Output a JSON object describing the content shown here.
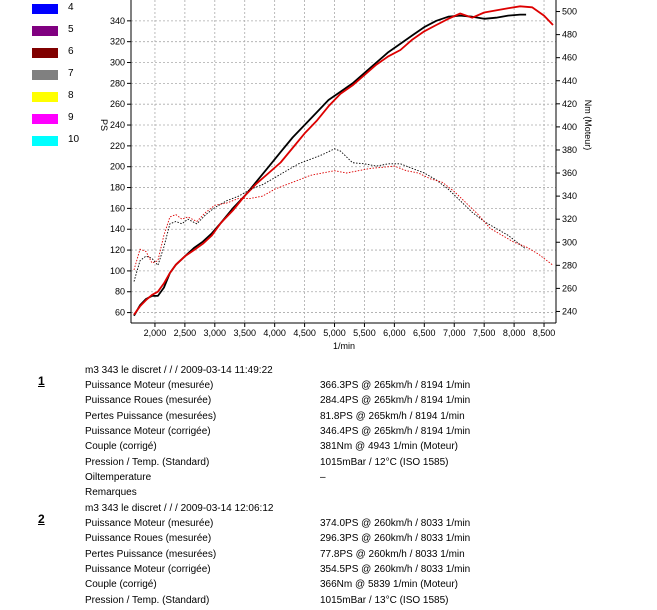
{
  "legend": [
    {
      "num": "4",
      "color": "#0000ff"
    },
    {
      "num": "5",
      "color": "#800080"
    },
    {
      "num": "6",
      "color": "#800000"
    },
    {
      "num": "7",
      "color": "#808080"
    },
    {
      "num": "8",
      "color": "#ffff00"
    },
    {
      "num": "9",
      "color": "#ff00ff"
    },
    {
      "num": "10",
      "color": "#00ffff"
    }
  ],
  "chart_data": {
    "type": "line",
    "xlabel": "1/min",
    "ylabel_left": "PS",
    "ylabel_right": "Nm (Moteur)",
    "xlim": [
      1600,
      8700
    ],
    "ylim_left": [
      50,
      360
    ],
    "ylim_right": [
      230,
      510
    ],
    "x_ticks": [
      "2,000",
      "2,500",
      "3,000",
      "3,500",
      "4,000",
      "4,500",
      "5,000",
      "5,500",
      "6,000",
      "6,500",
      "7,000",
      "7,500",
      "8,000",
      "8,500"
    ],
    "x_tick_values": [
      2000,
      2500,
      3000,
      3500,
      4000,
      4500,
      5000,
      5500,
      6000,
      6500,
      7000,
      7500,
      8000,
      8500
    ],
    "y_left_ticks": [
      60,
      80,
      100,
      120,
      140,
      160,
      180,
      200,
      220,
      240,
      260,
      280,
      300,
      320,
      340
    ],
    "y_right_ticks": [
      240,
      260,
      280,
      300,
      320,
      340,
      360,
      380,
      400,
      420,
      440,
      460,
      480,
      500
    ],
    "grid": true,
    "series": [
      {
        "name": "1",
        "color": "#000000",
        "style": "solid",
        "axis": "left",
        "points": [
          [
            1650,
            57
          ],
          [
            1750,
            67
          ],
          [
            1850,
            73
          ],
          [
            1950,
            76
          ],
          [
            2050,
            76
          ],
          [
            2150,
            84
          ],
          [
            2250,
            98
          ],
          [
            2350,
            106
          ],
          [
            2500,
            114
          ],
          [
            2650,
            122
          ],
          [
            2800,
            128
          ],
          [
            2950,
            136
          ],
          [
            3100,
            146
          ],
          [
            3300,
            160
          ],
          [
            3500,
            172
          ],
          [
            3700,
            186
          ],
          [
            3900,
            200
          ],
          [
            4100,
            214
          ],
          [
            4300,
            228
          ],
          [
            4500,
            240
          ],
          [
            4700,
            252
          ],
          [
            4900,
            264
          ],
          [
            5100,
            272
          ],
          [
            5300,
            280
          ],
          [
            5500,
            290
          ],
          [
            5700,
            300
          ],
          [
            5900,
            310
          ],
          [
            6100,
            318
          ],
          [
            6300,
            326
          ],
          [
            6500,
            334
          ],
          [
            6700,
            340
          ],
          [
            6900,
            344
          ],
          [
            7100,
            345
          ],
          [
            7300,
            344
          ],
          [
            7500,
            342
          ],
          [
            7700,
            343
          ],
          [
            7900,
            345
          ],
          [
            8100,
            346
          ],
          [
            8200,
            346
          ]
        ]
      },
      {
        "name": "2",
        "color": "#dd0000",
        "style": "solid",
        "axis": "left",
        "points": [
          [
            1650,
            58
          ],
          [
            1750,
            66
          ],
          [
            1850,
            72
          ],
          [
            1950,
            77
          ],
          [
            2050,
            80
          ],
          [
            2150,
            88
          ],
          [
            2250,
            98
          ],
          [
            2350,
            106
          ],
          [
            2500,
            114
          ],
          [
            2650,
            120
          ],
          [
            2800,
            126
          ],
          [
            2950,
            134
          ],
          [
            3100,
            146
          ],
          [
            3300,
            158
          ],
          [
            3500,
            172
          ],
          [
            3700,
            184
          ],
          [
            3900,
            194
          ],
          [
            4100,
            204
          ],
          [
            4300,
            218
          ],
          [
            4500,
            232
          ],
          [
            4700,
            244
          ],
          [
            4900,
            258
          ],
          [
            5100,
            270
          ],
          [
            5300,
            278
          ],
          [
            5500,
            288
          ],
          [
            5700,
            298
          ],
          [
            5900,
            306
          ],
          [
            6100,
            312
          ],
          [
            6300,
            322
          ],
          [
            6500,
            330
          ],
          [
            6700,
            336
          ],
          [
            6900,
            342
          ],
          [
            7100,
            347
          ],
          [
            7300,
            343
          ],
          [
            7500,
            348
          ],
          [
            7700,
            350
          ],
          [
            7900,
            352
          ],
          [
            8100,
            354
          ],
          [
            8300,
            353
          ],
          [
            8500,
            345
          ],
          [
            8650,
            336
          ]
        ]
      },
      {
        "name": "1",
        "color": "#000000",
        "style": "dotted",
        "axis": "right",
        "points": [
          [
            1650,
            266
          ],
          [
            1750,
            284
          ],
          [
            1850,
            288
          ],
          [
            1950,
            286
          ],
          [
            2050,
            280
          ],
          [
            2150,
            296
          ],
          [
            2250,
            316
          ],
          [
            2350,
            318
          ],
          [
            2450,
            316
          ],
          [
            2550,
            320
          ],
          [
            2700,
            316
          ],
          [
            2850,
            324
          ],
          [
            3000,
            330
          ],
          [
            3200,
            336
          ],
          [
            3400,
            340
          ],
          [
            3600,
            346
          ],
          [
            3800,
            350
          ],
          [
            4000,
            356
          ],
          [
            4200,
            362
          ],
          [
            4400,
            368
          ],
          [
            4600,
            372
          ],
          [
            4800,
            376
          ],
          [
            5000,
            381
          ],
          [
            5100,
            379
          ],
          [
            5300,
            369
          ],
          [
            5500,
            368
          ],
          [
            5700,
            366
          ],
          [
            5900,
            368
          ],
          [
            6100,
            368
          ],
          [
            6300,
            364
          ],
          [
            6500,
            360
          ],
          [
            6700,
            354
          ],
          [
            6900,
            346
          ],
          [
            7100,
            336
          ],
          [
            7300,
            326
          ],
          [
            7500,
            318
          ],
          [
            7700,
            312
          ],
          [
            7900,
            306
          ],
          [
            8100,
            298
          ],
          [
            8200,
            294
          ]
        ]
      },
      {
        "name": "2",
        "color": "#dd0000",
        "style": "dotted",
        "axis": "right",
        "points": [
          [
            1650,
            276
          ],
          [
            1750,
            294
          ],
          [
            1850,
            292
          ],
          [
            1950,
            282
          ],
          [
            2050,
            284
          ],
          [
            2150,
            306
          ],
          [
            2250,
            322
          ],
          [
            2350,
            324
          ],
          [
            2450,
            320
          ],
          [
            2550,
            322
          ],
          [
            2700,
            318
          ],
          [
            2850,
            326
          ],
          [
            3000,
            332
          ],
          [
            3200,
            334
          ],
          [
            3400,
            338
          ],
          [
            3600,
            338
          ],
          [
            3800,
            340
          ],
          [
            4000,
            346
          ],
          [
            4200,
            350
          ],
          [
            4400,
            354
          ],
          [
            4600,
            358
          ],
          [
            4800,
            360
          ],
          [
            5000,
            362
          ],
          [
            5200,
            360
          ],
          [
            5400,
            362
          ],
          [
            5600,
            364
          ],
          [
            5800,
            365
          ],
          [
            6000,
            366
          ],
          [
            6200,
            362
          ],
          [
            6400,
            360
          ],
          [
            6600,
            355
          ],
          [
            6800,
            352
          ],
          [
            7000,
            344
          ],
          [
            7200,
            334
          ],
          [
            7400,
            324
          ],
          [
            7600,
            312
          ],
          [
            7800,
            306
          ],
          [
            8000,
            300
          ],
          [
            8200,
            296
          ],
          [
            8400,
            290
          ],
          [
            8550,
            284
          ],
          [
            8650,
            280
          ]
        ]
      }
    ]
  },
  "runs": [
    {
      "num": "1",
      "title": "m3 343 le discret /  /  / 2009-03-14 11:49:22",
      "rows": [
        {
          "label": "Puissance Moteur (mesurée)",
          "value": "366.3PS @ 265km/h / 8194 1/min"
        },
        {
          "label": "Puissance Roues (mesurée)",
          "value": "284.4PS @ 265km/h / 8194 1/min"
        },
        {
          "label": "Pertes Puissance (mesurées)",
          "value": "81.8PS @ 265km/h / 8194 1/min"
        },
        {
          "label": "Puissance Moteur (corrigée)",
          "value": "346.4PS @ 265km/h / 8194 1/min"
        },
        {
          "label": "Couple (corrigé)",
          "value": "381Nm @ 4943 1/min (Moteur)"
        },
        {
          "label": "Pression / Temp. (Standard)",
          "value": "1015mBar / 12°C   (ISO 1585)"
        },
        {
          "label": "Oiltemperature",
          "value": "–"
        },
        {
          "label": "Remarques",
          "value": ""
        }
      ]
    },
    {
      "num": "2",
      "title": "m3 343 le discret /  /  / 2009-03-14 12:06:12",
      "rows": [
        {
          "label": "Puissance Moteur (mesurée)",
          "value": "374.0PS @ 260km/h / 8033 1/min"
        },
        {
          "label": "Puissance Roues (mesurée)",
          "value": "296.3PS @ 260km/h / 8033 1/min"
        },
        {
          "label": "Pertes Puissance (mesurées)",
          "value": "77.8PS @ 260km/h / 8033 1/min"
        },
        {
          "label": "Puissance Moteur (corrigée)",
          "value": "354.5PS @ 260km/h / 8033 1/min"
        },
        {
          "label": "Couple (corrigé)",
          "value": "366Nm @ 5839 1/min (Moteur)"
        },
        {
          "label": "Pression / Temp. (Standard)",
          "value": "1015mBar / 13°C   (ISO 1585)"
        }
      ]
    }
  ]
}
